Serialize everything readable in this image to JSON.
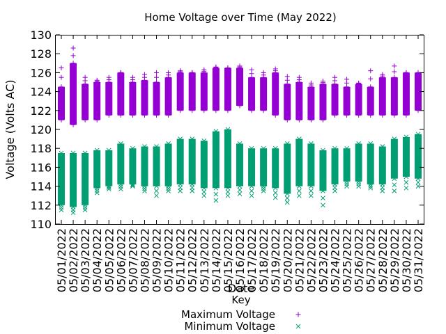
{
  "chart_data": {
    "type": "box",
    "title": "Home Voltage over Time (May 2022)",
    "xlabel": "Date",
    "ylabel": "Voltage (Volts AC)",
    "ylim": [
      110,
      130
    ],
    "yticks": [
      110,
      112,
      114,
      116,
      118,
      120,
      122,
      124,
      126,
      128,
      130
    ],
    "categories": [
      "05/01/2022",
      "05/02/2022",
      "05/03/2022",
      "05/04/2022",
      "05/05/2022",
      "05/06/2022",
      "05/07/2022",
      "05/08/2022",
      "05/09/2022",
      "05/10/2022",
      "05/11/2022",
      "05/12/2022",
      "05/13/2022",
      "05/14/2022",
      "05/15/2022",
      "05/16/2022",
      "05/17/2022",
      "05/18/2022",
      "05/19/2022",
      "05/20/2022",
      "05/21/2022",
      "05/22/2022",
      "05/23/2022",
      "05/24/2022",
      "05/25/2022",
      "05/26/2022",
      "05/27/2022",
      "05/28/2022",
      "05/29/2022",
      "05/30/2022",
      "05/31/2022"
    ],
    "legend": {
      "title": "Key",
      "placement": "bottom-center"
    },
    "series": [
      {
        "name": "Maximum Voltage",
        "marker": "+",
        "color": "#9400d3",
        "low": [
          121.0,
          120.5,
          121.0,
          121.0,
          121.5,
          121.5,
          121.5,
          121.5,
          121.5,
          121.5,
          122.0,
          122.0,
          122.0,
          122.0,
          122.0,
          122.5,
          122.0,
          122.0,
          121.5,
          121.0,
          121.0,
          121.0,
          121.0,
          121.5,
          121.5,
          121.5,
          121.5,
          121.5,
          121.5,
          121.5,
          122.0
        ],
        "high": [
          124.5,
          127.0,
          124.8,
          125.0,
          125.0,
          126.0,
          125.0,
          125.2,
          125.0,
          125.5,
          126.0,
          126.0,
          126.0,
          126.5,
          126.5,
          126.5,
          125.5,
          125.5,
          126.0,
          124.8,
          125.0,
          124.5,
          124.8,
          124.8,
          124.5,
          124.8,
          124.5,
          125.5,
          125.5,
          126.0,
          126.0
        ],
        "outliers_high": [
          126.5,
          128.6,
          125.5,
          125.2,
          125.5,
          126.0,
          125.5,
          125.8,
          126.0,
          126.0,
          126.2,
          126.0,
          126.3,
          126.6,
          126.5,
          126.7,
          126.3,
          126.0,
          126.4,
          125.6,
          125.5,
          124.9,
          125.1,
          125.5,
          125.3,
          124.9,
          126.2,
          125.8,
          126.7,
          126.0,
          126.0
        ]
      },
      {
        "name": "Minimum Voltage",
        "marker": "x",
        "color": "#009e73",
        "low": [
          112.0,
          111.8,
          112.0,
          113.8,
          114.0,
          114.2,
          114.2,
          114.0,
          114.0,
          114.0,
          114.2,
          114.2,
          113.8,
          113.8,
          113.8,
          114.0,
          114.0,
          114.0,
          113.8,
          113.2,
          114.0,
          114.0,
          113.5,
          114.2,
          114.5,
          114.5,
          114.2,
          114.2,
          114.8,
          115.0,
          114.8
        ],
        "high": [
          117.5,
          117.5,
          117.5,
          117.8,
          117.8,
          118.5,
          118.0,
          118.2,
          118.2,
          118.5,
          119.0,
          119.0,
          118.8,
          119.8,
          120.0,
          118.5,
          118.0,
          118.0,
          118.0,
          118.5,
          119.0,
          118.5,
          117.8,
          118.0,
          118.0,
          118.5,
          118.5,
          118.2,
          119.0,
          119.2,
          119.5
        ],
        "outliers_low": [
          111.5,
          111.2,
          111.5,
          113.3,
          113.7,
          113.7,
          114.0,
          113.5,
          113.0,
          113.5,
          113.5,
          113.5,
          113.0,
          112.5,
          113.0,
          113.2,
          113.0,
          113.5,
          112.8,
          112.3,
          113.0,
          113.0,
          112.0,
          113.5,
          114.0,
          114.0,
          113.8,
          113.5,
          113.5,
          113.8,
          114.0
        ]
      }
    ]
  }
}
